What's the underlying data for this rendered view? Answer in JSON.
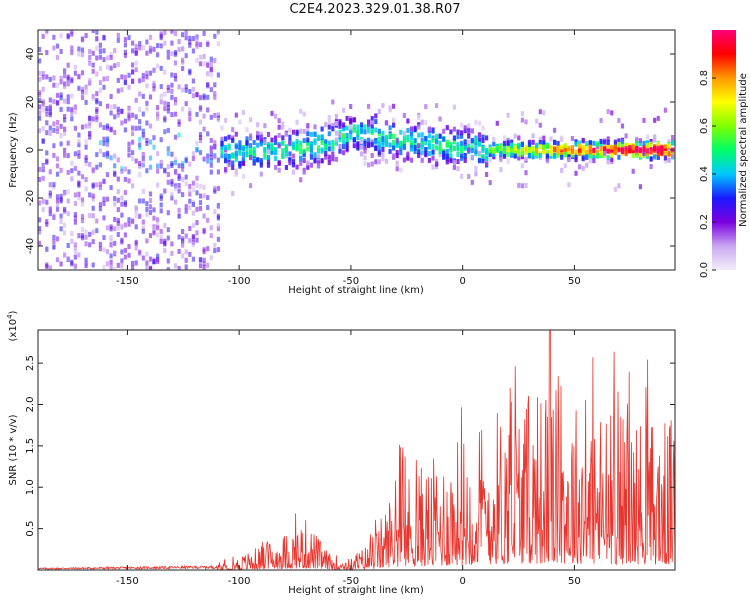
{
  "title": "C2E4.2023.329.01.38.R07",
  "chart_data": [
    {
      "type": "heatmap",
      "xlabel": "Height of straight line (km)",
      "ylabel": "Frequency (Hz)",
      "xlim": [
        -190,
        95
      ],
      "ylim": [
        -50,
        50
      ],
      "xticks": [
        -150,
        -100,
        -50,
        0,
        50
      ],
      "yticks": [
        -40,
        -20,
        0,
        20,
        40
      ],
      "colorbar": {
        "label": "Normalized spectral amplitude",
        "range": [
          0.0,
          1.0
        ],
        "ticks": [
          "0.0",
          "0.2",
          "0.4",
          "0.6",
          "0.8"
        ],
        "colors": [
          "#f2eefa",
          "#c9a6f2",
          "#7a00e0",
          "#1a1aff",
          "#00c8ff",
          "#00ff66",
          "#80ff00",
          "#ffff00",
          "#ff9900",
          "#ff0000",
          "#ff0077"
        ]
      },
      "ridge": {
        "x": [
          -140,
          -120,
          -100,
          -80,
          -60,
          -50,
          -40,
          -30,
          -20,
          -10,
          0,
          10,
          20,
          40,
          60,
          90
        ],
        "y": [
          -3,
          -2,
          -1,
          0,
          3,
          7,
          6,
          4,
          3,
          2,
          1,
          0,
          0,
          0,
          0,
          0
        ]
      }
    },
    {
      "type": "line",
      "xlabel": "Height of straight line (km)",
      "ylabel": "SNR (10 * v/v)",
      "y_multiplier": "(x10",
      "y_multiplier_exp": "4",
      "xlim": [
        -190,
        95
      ],
      "ylim": [
        0,
        2.9
      ],
      "xticks": [
        -150,
        -100,
        -50,
        0,
        50
      ],
      "yticks": [
        0.5,
        1.0,
        1.5,
        2.0,
        2.5
      ],
      "color": "#e8352e",
      "envelope": {
        "x": [
          -190,
          -110,
          -100,
          -90,
          -80,
          -70,
          -60,
          -50,
          -40,
          -30,
          -20,
          -10,
          0,
          10,
          20,
          30,
          40,
          50,
          60,
          70,
          80,
          95
        ],
        "y": [
          0.02,
          0.04,
          0.12,
          0.22,
          0.32,
          0.45,
          0.15,
          0.1,
          0.28,
          0.8,
          0.9,
          1.0,
          1.2,
          1.35,
          1.5,
          1.55,
          1.6,
          1.5,
          1.45,
          1.4,
          1.35,
          1.3
        ]
      }
    }
  ]
}
